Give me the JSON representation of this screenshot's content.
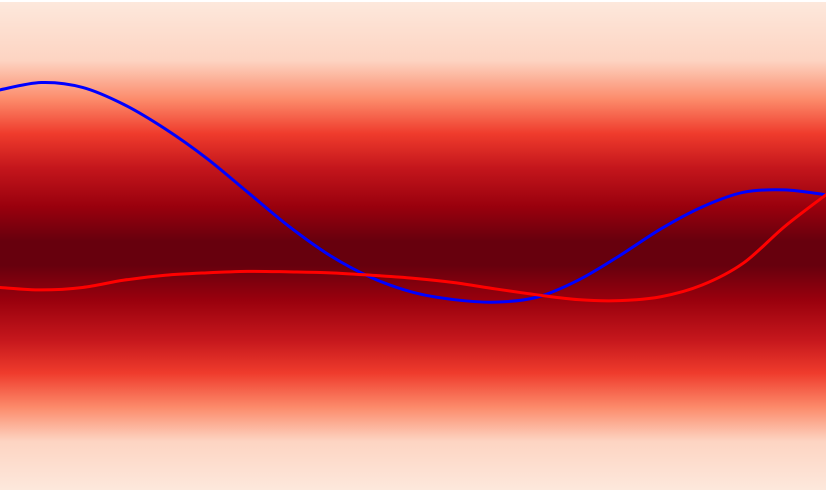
{
  "chart_data": {
    "type": "line",
    "title": "",
    "xlabel": "",
    "ylabel": "",
    "grid": false,
    "xlim": [
      0,
      1
    ],
    "ylim": [
      0,
      1
    ],
    "background": {
      "type": "horizontal-gradient-band",
      "colormap": "Reds",
      "peak_y": 0.51,
      "edge_color": "#fde8dc",
      "stops": [
        {
          "y": 0.0,
          "color": "#fde8dc"
        },
        {
          "y": 0.12,
          "color": "#fdd4c2"
        },
        {
          "y": 0.2,
          "color": "#fc8a6a"
        },
        {
          "y": 0.27,
          "color": "#ef3b2c"
        },
        {
          "y": 0.34,
          "color": "#c4161c"
        },
        {
          "y": 0.42,
          "color": "#99000d"
        },
        {
          "y": 0.49,
          "color": "#67000d"
        },
        {
          "y": 0.54,
          "color": "#67000d"
        },
        {
          "y": 0.61,
          "color": "#99000d"
        },
        {
          "y": 0.69,
          "color": "#c4161c"
        },
        {
          "y": 0.76,
          "color": "#ef3b2c"
        },
        {
          "y": 0.83,
          "color": "#fc8a6a"
        },
        {
          "y": 0.9,
          "color": "#fdd4c2"
        },
        {
          "y": 1.0,
          "color": "#fde8dc"
        }
      ]
    },
    "series": [
      {
        "color": "#0000ff",
        "x": [
          0.0,
          0.05,
          0.1,
          0.15,
          0.2,
          0.25,
          0.3,
          0.35,
          0.4,
          0.45,
          0.5,
          0.55,
          0.6,
          0.65,
          0.7,
          0.75,
          0.8,
          0.85,
          0.9,
          0.95,
          1.0
        ],
        "y": [
          0.18,
          0.165,
          0.175,
          0.21,
          0.26,
          0.32,
          0.39,
          0.46,
          0.52,
          0.565,
          0.595,
          0.61,
          0.615,
          0.605,
          0.57,
          0.52,
          0.465,
          0.42,
          0.39,
          0.385,
          0.395
        ]
      },
      {
        "color": "#ff0000",
        "x": [
          0.0,
          0.05,
          0.1,
          0.15,
          0.2,
          0.25,
          0.3,
          0.35,
          0.4,
          0.45,
          0.5,
          0.55,
          0.6,
          0.65,
          0.7,
          0.75,
          0.8,
          0.85,
          0.9,
          0.95,
          1.0
        ],
        "y": [
          0.585,
          0.59,
          0.585,
          0.57,
          0.56,
          0.555,
          0.552,
          0.553,
          0.555,
          0.56,
          0.566,
          0.575,
          0.588,
          0.6,
          0.61,
          0.612,
          0.604,
          0.58,
          0.535,
          0.46,
          0.395
        ]
      }
    ]
  }
}
